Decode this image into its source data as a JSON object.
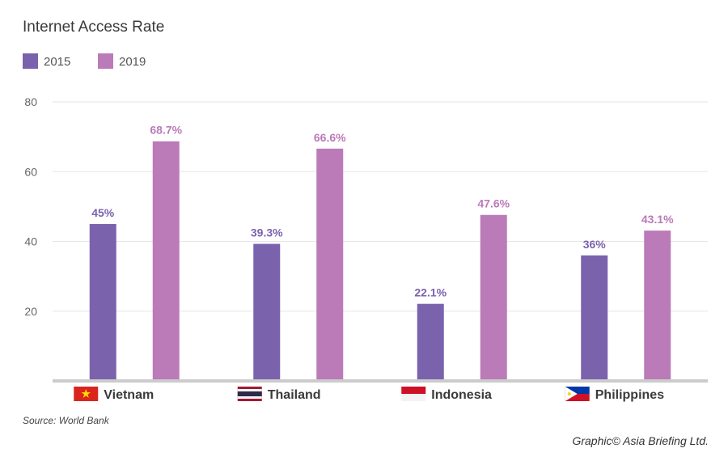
{
  "chart_data": {
    "type": "bar",
    "title": "Internet Access Rate",
    "categories": [
      "Vietnam",
      "Thailand",
      "Indonesia",
      "Philippines"
    ],
    "series": [
      {
        "name": "2015",
        "color": "#7b62ad",
        "values": [
          45,
          39.3,
          22.1,
          36
        ],
        "labels": [
          "45%",
          "39.3%",
          "22.1%",
          "36%"
        ]
      },
      {
        "name": "2019",
        "color": "#bb7ab8",
        "values": [
          68.7,
          66.6,
          47.6,
          43.1
        ],
        "labels": [
          "68.7%",
          "66.6%",
          "47.6%",
          "43.1%"
        ]
      }
    ],
    "ylim": [
      0,
      80
    ],
    "yticks": [
      20,
      40,
      60,
      80
    ],
    "grid": true,
    "legend": "top-left",
    "flags": [
      "vietnam-flag-icon",
      "thailand-flag-icon",
      "indonesia-flag-icon",
      "philippines-flag-icon"
    ]
  },
  "source": "Source: World Bank",
  "credit": "Graphic© Asia Briefing Ltd."
}
